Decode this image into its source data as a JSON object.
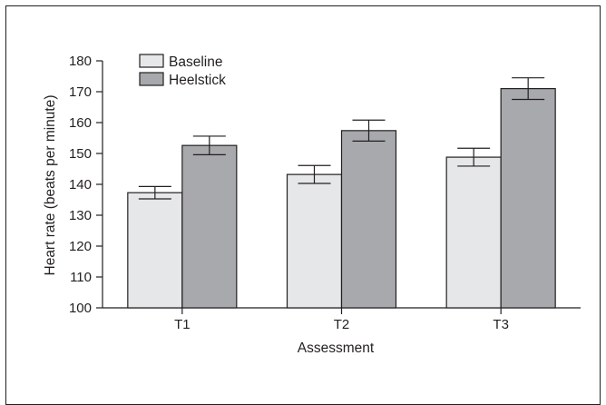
{
  "chart_data": {
    "type": "bar",
    "title": "",
    "xlabel": "Assessment",
    "ylabel": "Heart rate (beats per minute)",
    "categories": [
      "T1",
      "T2",
      "T3"
    ],
    "ylim": [
      100,
      180
    ],
    "yticks": [
      100,
      110,
      120,
      130,
      140,
      150,
      160,
      170,
      180
    ],
    "legend_position": "top-left",
    "grid": false,
    "series": [
      {
        "name": "Baseline",
        "color": "#e6e7e8",
        "values": [
          137.3,
          143.2,
          148.8
        ],
        "errors": [
          2.0,
          2.9,
          2.9
        ]
      },
      {
        "name": "Heelstick",
        "color": "#a7a9ac",
        "values": [
          152.6,
          157.4,
          171.0
        ],
        "errors": [
          3.0,
          3.4,
          3.5
        ]
      }
    ]
  }
}
